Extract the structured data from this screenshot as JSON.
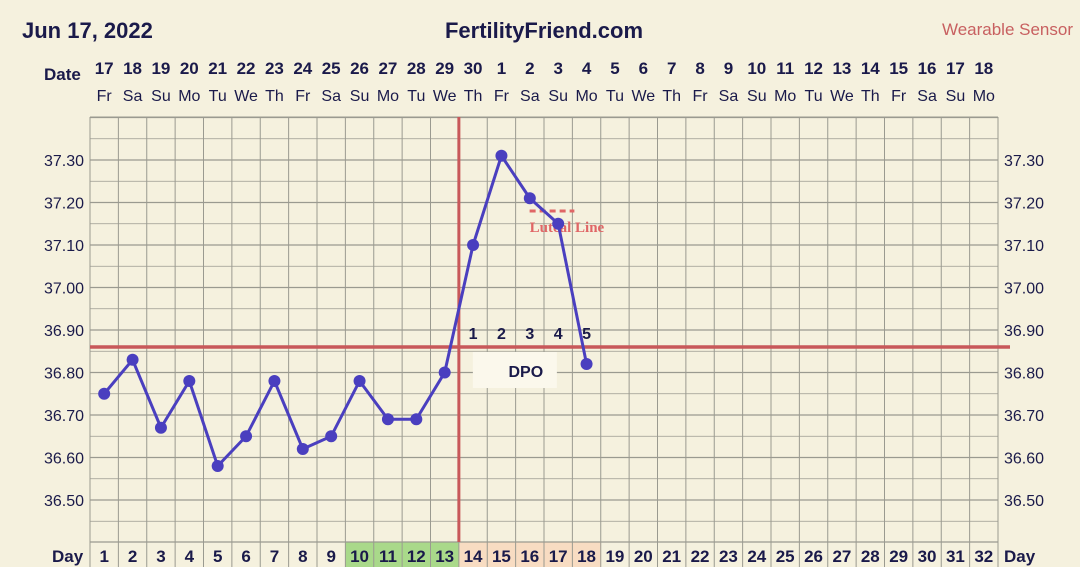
{
  "header": {
    "date": "Jun 17, 2022",
    "site": "FertilityFriend.com",
    "sensor": "Wearable Sensor"
  },
  "colors": {
    "background": "#f5f1de",
    "grid": "#9a9a90",
    "line": "#4a3fbf",
    "coverline": "#c8585a",
    "ovulation": "#c8585a",
    "luteal": "#e06666",
    "fertile_cell": "#a9d98a",
    "luteal_cell": "#f8dcc2",
    "dpo_box": "#fbf8ec"
  },
  "labels": {
    "date_row": "Date",
    "day_row": "Day",
    "dpo": "DPO",
    "luteal_line": "Luteal Line"
  },
  "chart_data": {
    "type": "line",
    "dates": [
      "17",
      "18",
      "19",
      "20",
      "21",
      "22",
      "23",
      "24",
      "25",
      "26",
      "27",
      "28",
      "29",
      "30",
      "1",
      "2",
      "3",
      "4",
      "5",
      "6",
      "7",
      "8",
      "9",
      "10",
      "11",
      "12",
      "13",
      "14",
      "15",
      "16",
      "17",
      "18"
    ],
    "weekdays": [
      "Fr",
      "Sa",
      "Su",
      "Mo",
      "Tu",
      "We",
      "Th",
      "Fr",
      "Sa",
      "Su",
      "Mo",
      "Tu",
      "We",
      "Th",
      "Fr",
      "Sa",
      "Su",
      "Mo",
      "Tu",
      "We",
      "Th",
      "Fr",
      "Sa",
      "Su",
      "Mo",
      "Tu",
      "We",
      "Th",
      "Fr",
      "Sa",
      "Su",
      "Mo"
    ],
    "days": [
      1,
      2,
      3,
      4,
      5,
      6,
      7,
      8,
      9,
      10,
      11,
      12,
      13,
      14,
      15,
      16,
      17,
      18,
      19,
      20,
      21,
      22,
      23,
      24,
      25,
      26,
      27,
      28,
      29,
      30,
      31,
      32
    ],
    "temperatures": [
      36.75,
      36.83,
      36.67,
      36.78,
      36.58,
      36.65,
      36.78,
      36.62,
      36.65,
      36.78,
      36.69,
      36.69,
      36.8,
      37.1,
      37.31,
      37.21,
      37.15,
      36.82
    ],
    "y_ticks": [
      "37.30",
      "37.20",
      "37.10",
      "37.00",
      "36.90",
      "36.80",
      "36.70",
      "36.60",
      "36.50"
    ],
    "ylim": [
      36.4,
      37.4
    ],
    "coverline": 36.86,
    "ovulation_day": 13,
    "fertile_days": [
      10,
      11,
      12,
      13
    ],
    "luteal_days": [
      14,
      15,
      16,
      17,
      18
    ],
    "dpo_labels": [
      "1",
      "2",
      "3",
      "4",
      "5"
    ],
    "luteal_line": {
      "value": 37.18,
      "start_day": 16,
      "end_day": 17
    },
    "grid": true
  }
}
